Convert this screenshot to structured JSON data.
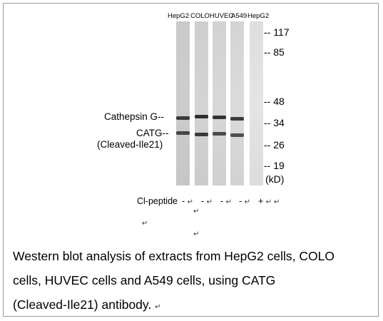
{
  "lanes": [
    {
      "label": "HepG2",
      "peptide": "-",
      "ret": "↵"
    },
    {
      "label": "COLO",
      "peptide": "-",
      "ret": "↵"
    },
    {
      "label": "HUVEC",
      "peptide": "-",
      "ret": "↵"
    },
    {
      "label": "A549",
      "peptide": "-",
      "ret": "↵"
    },
    {
      "label": "HepG2",
      "peptide": "+",
      "ret": "↵ ↵"
    }
  ],
  "markers": [
    {
      "dash": "--",
      "value": "117"
    },
    {
      "dash": "--",
      "value": "85"
    },
    {
      "dash": "--",
      "value": "48"
    },
    {
      "dash": "--",
      "value": "34"
    },
    {
      "dash": "--",
      "value": "26"
    },
    {
      "dash": "--",
      "value": "19"
    }
  ],
  "unit": "(kD)",
  "band_labels": {
    "cathepsin": "Cathepsin G--",
    "catg": "CATG--",
    "cleaved": "(Cleaved-Ile21)"
  },
  "peptide_label": "Cl-peptide",
  "return_mark": "↵",
  "caption": {
    "line1": "Western blot analysis of extracts from HepG2 cells, COLO",
    "line2": "cells, HUVEC cells and A549 cells, using CATG",
    "line3": "(Cleaved-Ile21) antibody.",
    "line3_mark": "↵"
  }
}
